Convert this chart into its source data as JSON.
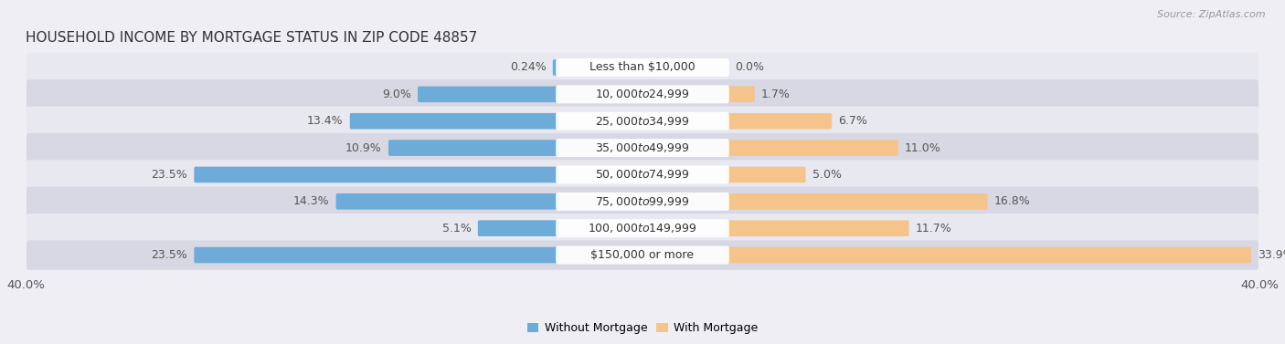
{
  "title": "Household Income by Mortgage Status in Zip Code 48857",
  "source": "Source: ZipAtlas.com",
  "categories": [
    "Less than $10,000",
    "$10,000 to $24,999",
    "$25,000 to $34,999",
    "$35,000 to $49,999",
    "$50,000 to $74,999",
    "$75,000 to $99,999",
    "$100,000 to $149,999",
    "$150,000 or more"
  ],
  "without_mortgage": [
    0.24,
    9.0,
    13.4,
    10.9,
    23.5,
    14.3,
    5.1,
    23.5
  ],
  "with_mortgage": [
    0.0,
    1.7,
    6.7,
    11.0,
    5.0,
    16.8,
    11.7,
    33.9
  ],
  "color_without": "#6dacd8",
  "color_with": "#f5c48a",
  "bg_color": "#eeeef4",
  "row_bg_even": "#e8e8f0",
  "row_bg_odd": "#d8d8e4",
  "xlim": 40.0,
  "title_fontsize": 11,
  "bar_label_fontsize": 9,
  "category_fontsize": 9,
  "legend_fontsize": 9,
  "source_fontsize": 8
}
